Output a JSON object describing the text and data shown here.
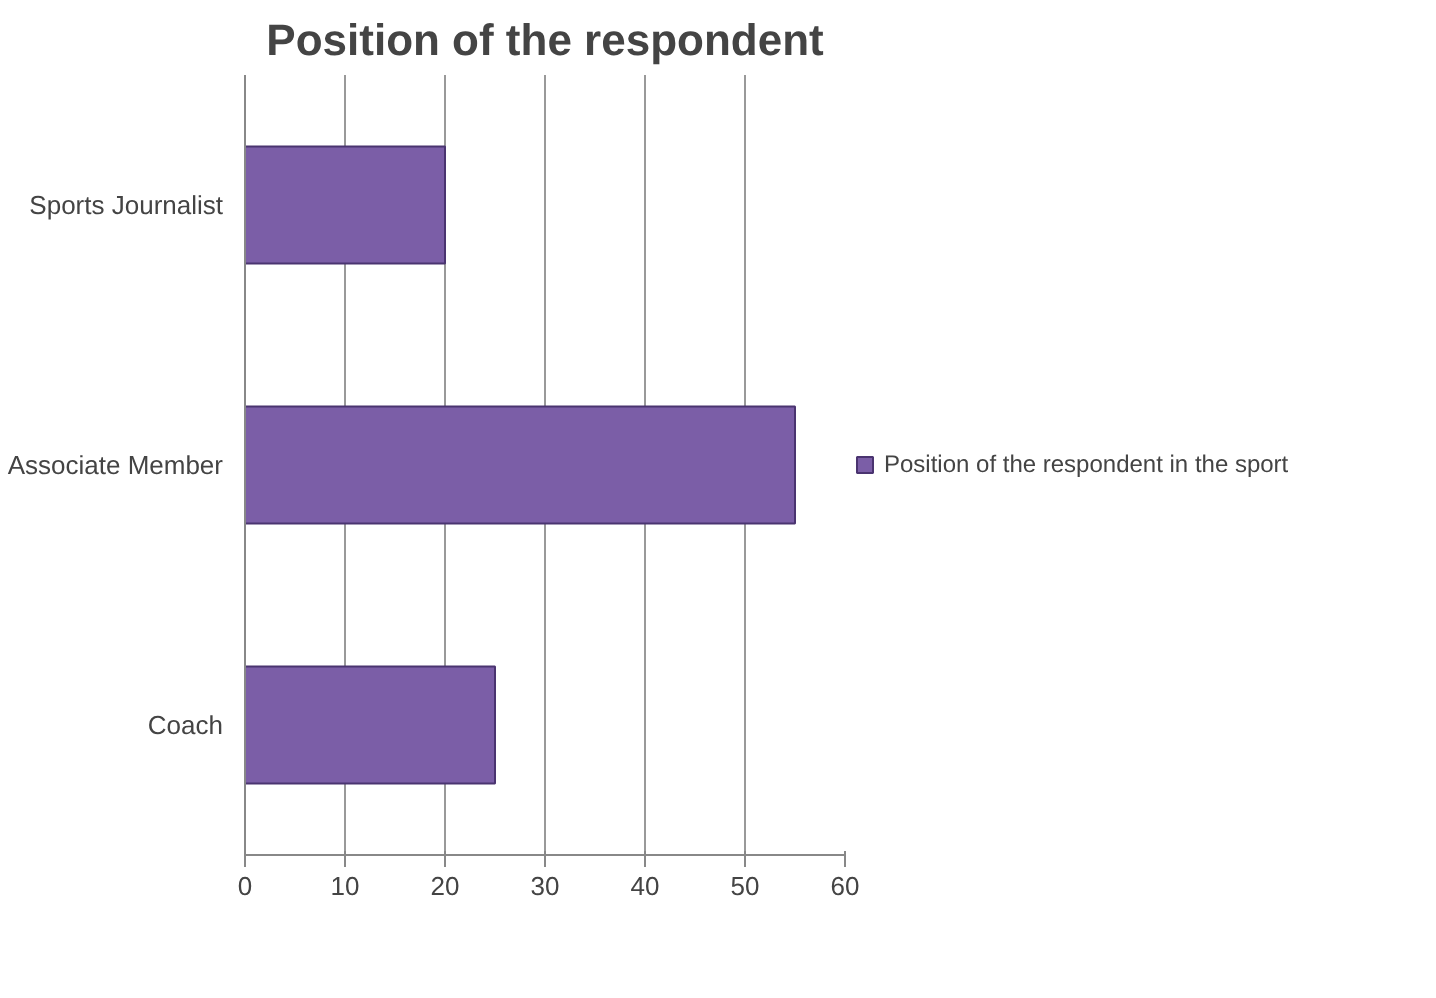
{
  "chart_data": {
    "type": "bar",
    "orientation": "horizontal",
    "title": "Position of the respondent",
    "categories": [
      "Sports Journalist",
      "Associate Member",
      "Coach"
    ],
    "series": [
      {
        "name": "Position of the respondent in the sport",
        "color": "#7b5ea7",
        "values": [
          20,
          55,
          25
        ]
      }
    ],
    "xlim": [
      0,
      60
    ],
    "xticks": [
      0,
      10,
      20,
      30,
      40,
      50,
      60
    ],
    "grid": "x",
    "legend": "right"
  }
}
